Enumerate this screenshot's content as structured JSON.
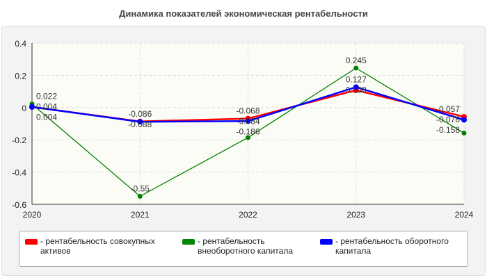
{
  "chart_data": {
    "type": "line",
    "title": "Динамика показателей экономическая рентабельности",
    "categories": [
      "2020",
      "2021",
      "2022",
      "2023",
      "2024"
    ],
    "ylim": [
      -0.6,
      0.4
    ],
    "yticks": [
      "0.4",
      "0.2",
      "0",
      "-0.2",
      "-0.4",
      "-0.6"
    ],
    "grid": true,
    "legend": "bottom",
    "series": [
      {
        "name": "- рентабельность совокупных активов",
        "color": "#ff0000",
        "values": [
          0.004,
          -0.086,
          -0.068,
          0.108,
          -0.057
        ]
      },
      {
        "name": "- рентабельность внеоборотного капитала",
        "color": "#008000",
        "values": [
          0.022,
          -0.55,
          -0.186,
          0.245,
          -0.158
        ]
      },
      {
        "name": "- рентабельность оборотного капитала",
        "color": "#0000ff",
        "values": [
          0.004,
          -0.088,
          -0.084,
          0.127,
          -0.076
        ]
      }
    ]
  }
}
